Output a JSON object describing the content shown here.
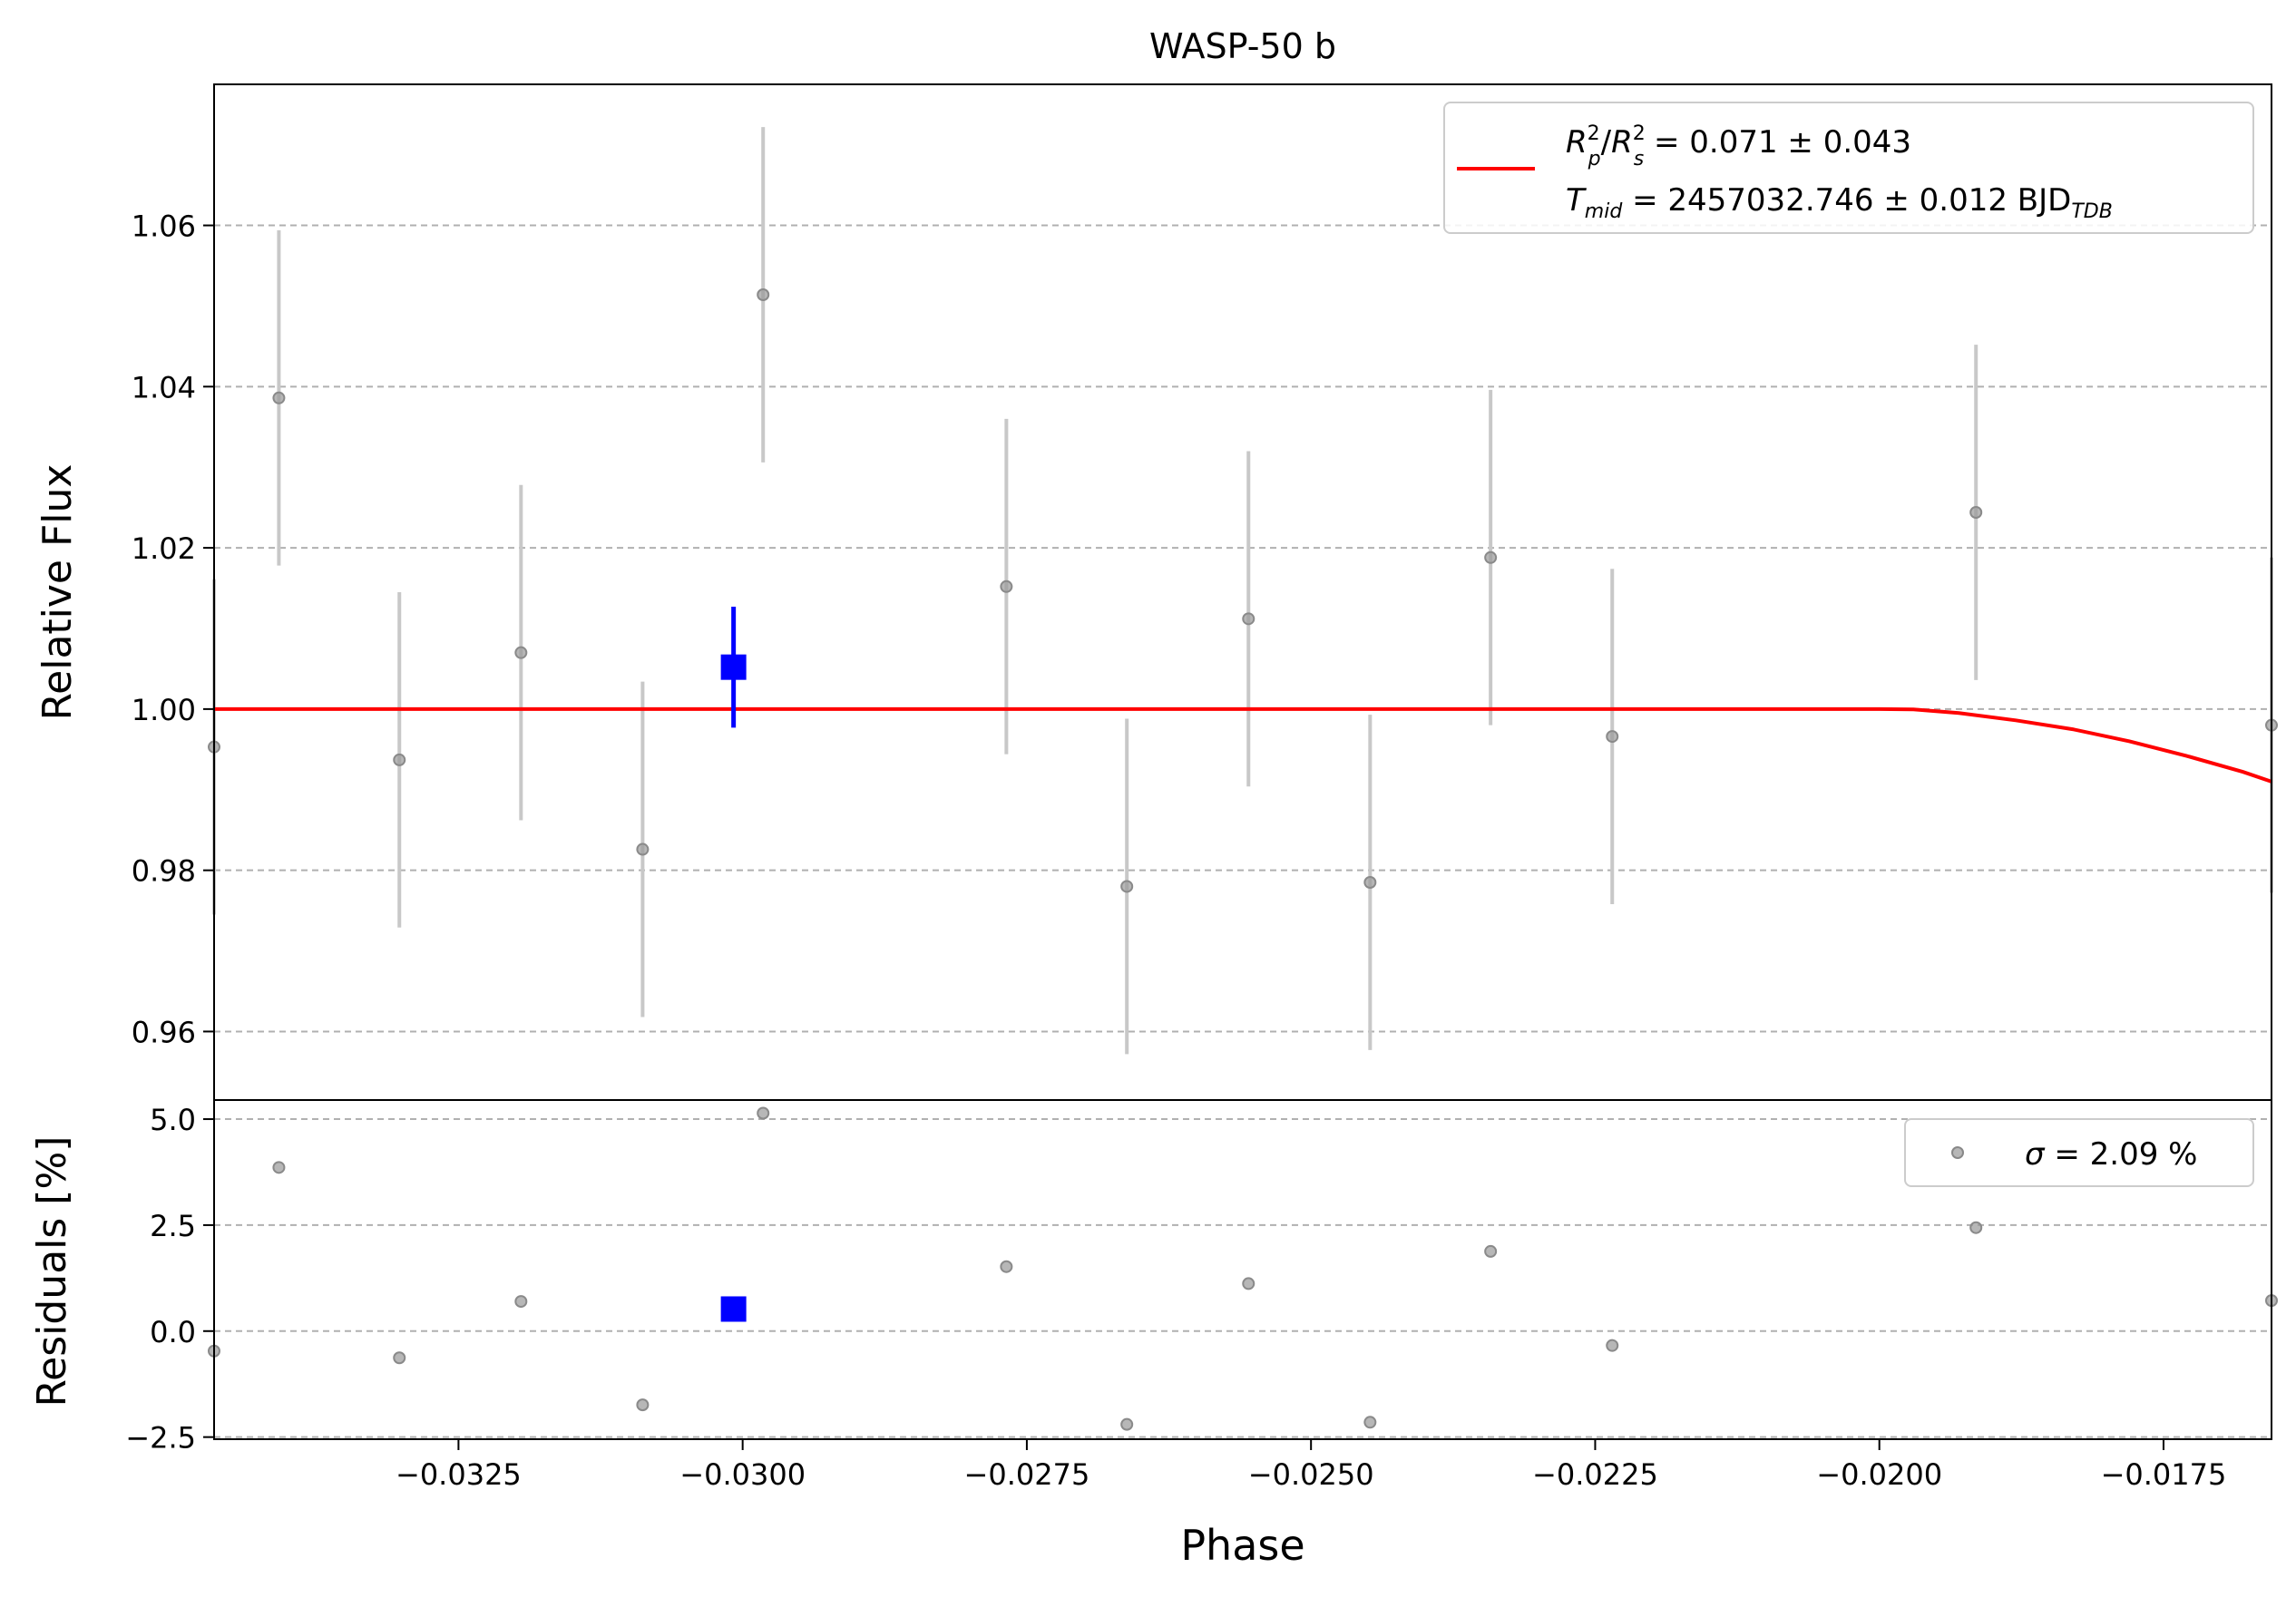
{
  "chart_data": {
    "type": "scatter",
    "title": "WASP-50 b",
    "xlabel": "Phase",
    "xlim": [
      -0.03465,
      -0.01655
    ],
    "x_ticks": [
      {
        "value": -0.0325,
        "label": "−0.0325"
      },
      {
        "value": -0.03,
        "label": "−0.0300"
      },
      {
        "value": -0.0275,
        "label": "−0.0275"
      },
      {
        "value": -0.025,
        "label": "−0.0250"
      },
      {
        "value": -0.0225,
        "label": "−0.0225"
      },
      {
        "value": -0.02,
        "label": "−0.0200"
      },
      {
        "value": -0.0175,
        "label": "−0.0175"
      }
    ],
    "flux_panel": {
      "ylabel": "Relative Flux",
      "ylim": [
        0.9515,
        1.0775
      ],
      "y_ticks": [
        {
          "value": 0.96,
          "label": "0.96"
        },
        {
          "value": 0.98,
          "label": "0.98"
        },
        {
          "value": 1.0,
          "label": "1.00"
        },
        {
          "value": 1.02,
          "label": "1.02"
        },
        {
          "value": 1.04,
          "label": "1.04"
        },
        {
          "value": 1.06,
          "label": "1.06"
        }
      ],
      "grid": "horizontal-dashed",
      "data_points": [
        {
          "x": -0.03465,
          "y": 0.9953,
          "err": 0.0208
        },
        {
          "x": -0.03408,
          "y": 1.0386,
          "err": 0.0208
        },
        {
          "x": -0.03302,
          "y": 0.9937,
          "err": 0.0208
        },
        {
          "x": -0.03195,
          "y": 1.007,
          "err": 0.0208
        },
        {
          "x": -0.03088,
          "y": 0.9826,
          "err": 0.0208
        },
        {
          "x": -0.02982,
          "y": 1.0514,
          "err": 0.0208
        },
        {
          "x": -0.02768,
          "y": 1.0152,
          "err": 0.0208
        },
        {
          "x": -0.02662,
          "y": 0.978,
          "err": 0.0208
        },
        {
          "x": -0.02555,
          "y": 1.0112,
          "err": 0.0208
        },
        {
          "x": -0.02448,
          "y": 0.9785,
          "err": 0.0208
        },
        {
          "x": -0.02342,
          "y": 1.0188,
          "err": 0.0208
        },
        {
          "x": -0.02235,
          "y": 0.9966,
          "err": 0.0208
        },
        {
          "x": -0.01915,
          "y": 1.0244,
          "err": 0.0208
        },
        {
          "x": -0.01655,
          "y": 0.998,
          "err": 0.0208
        }
      ],
      "binned_point": {
        "x": -0.03008,
        "y": 1.0052,
        "err": 0.0075,
        "color": "#0000ff"
      },
      "model": {
        "color": "#ff0000",
        "points": [
          [
            -0.03465,
            1.0
          ],
          [
            -0.02,
            1.0
          ],
          [
            -0.0197,
            0.99995
          ],
          [
            -0.0193,
            0.9995
          ],
          [
            -0.0188,
            0.9986
          ],
          [
            -0.0183,
            0.9975
          ],
          [
            -0.0178,
            0.996
          ],
          [
            -0.0173,
            0.9942
          ],
          [
            -0.0168,
            0.9922
          ],
          [
            -0.01655,
            0.991
          ]
        ]
      },
      "legend": {
        "position": "upper right",
        "line1": {
          "a": "R",
          "a_sup": "2",
          "a_sub": "p",
          "slash": "/",
          "b": "R",
          "b_sup": "2",
          "b_sub": "s",
          "rest": " = 0.071 ± 0.043"
        },
        "line2": {
          "a": "T",
          "a_sub": "mid",
          "rest": " = 2457032.746 ± 0.012 BJD",
          "rest_sub": "TDB"
        }
      }
    },
    "residual_panel": {
      "ylabel": "Residuals [%]",
      "ylim": [
        -2.55,
        5.45
      ],
      "y_ticks": [
        {
          "value": -2.5,
          "label": "−2.5"
        },
        {
          "value": 0.0,
          "label": "0.0"
        },
        {
          "value": 2.5,
          "label": "2.5"
        },
        {
          "value": 5.0,
          "label": "5.0"
        }
      ],
      "grid": "horizontal-dashed",
      "data_points": [
        {
          "x": -0.03465,
          "y": -0.47
        },
        {
          "x": -0.03408,
          "y": 3.86
        },
        {
          "x": -0.03302,
          "y": -0.63
        },
        {
          "x": -0.03195,
          "y": 0.7
        },
        {
          "x": -0.03088,
          "y": -1.74
        },
        {
          "x": -0.02982,
          "y": 5.14
        },
        {
          "x": -0.02768,
          "y": 1.52
        },
        {
          "x": -0.02662,
          "y": -2.2
        },
        {
          "x": -0.02555,
          "y": 1.12
        },
        {
          "x": -0.02448,
          "y": -2.15
        },
        {
          "x": -0.02342,
          "y": 1.88
        },
        {
          "x": -0.02235,
          "y": -0.34
        },
        {
          "x": -0.01915,
          "y": 2.44
        },
        {
          "x": -0.01655,
          "y": 0.72
        }
      ],
      "binned_point": {
        "x": -0.03008,
        "y": 0.52,
        "color": "#0000ff"
      },
      "legend": {
        "position": "upper right",
        "sigma_symbol": "σ",
        "sigma_text": " = 2.09 %"
      }
    }
  }
}
